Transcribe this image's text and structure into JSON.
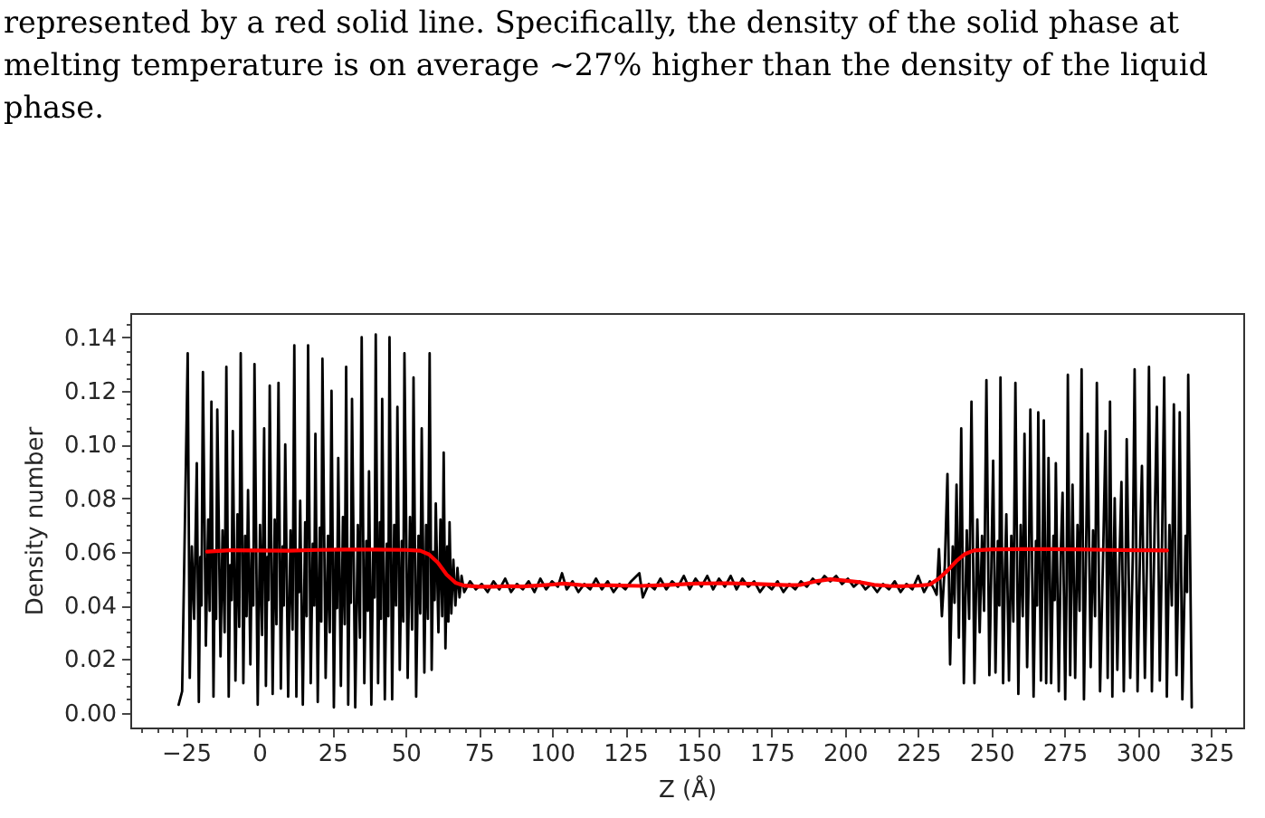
{
  "chart_data": {
    "type": "line",
    "annotations": [
      "represented by a red solid line.  Specifically, the density of the solid phase at\nmelting temperature is on average ∼27% higher than the density of the liquid\nphase."
    ],
    "xlabel": "Z (Å)",
    "ylabel": "Density number",
    "xlim": [
      -44,
      336
    ],
    "ylim": [
      -0.0055,
      0.149
    ],
    "xticks": [
      {
        "value": -40,
        "label": null
      },
      {
        "value": -35,
        "label": null
      },
      {
        "value": -30,
        "label": null
      },
      {
        "value": -25,
        "label": "−25"
      },
      {
        "value": -20,
        "label": null
      },
      {
        "value": -15,
        "label": null
      },
      {
        "value": -10,
        "label": null
      },
      {
        "value": -5,
        "label": null
      },
      0,
      {
        "value": 5,
        "label": null
      },
      {
        "value": 10,
        "label": null
      },
      {
        "value": 15,
        "label": null
      },
      {
        "value": 20,
        "label": null
      },
      25,
      {
        "value": 30,
        "label": null
      },
      {
        "value": 35,
        "label": null
      },
      {
        "value": 40,
        "label": null
      },
      {
        "value": 45,
        "label": null
      },
      50,
      {
        "value": 55,
        "label": null
      },
      {
        "value": 60,
        "label": null
      },
      {
        "value": 65,
        "label": null
      },
      {
        "value": 70,
        "label": null
      },
      75,
      {
        "value": 80,
        "label": null
      },
      {
        "value": 85,
        "label": null
      },
      {
        "value": 90,
        "label": null
      },
      {
        "value": 95,
        "label": null
      },
      100,
      {
        "value": 105,
        "label": null
      },
      {
        "value": 110,
        "label": null
      },
      {
        "value": 115,
        "label": null
      },
      {
        "value": 120,
        "label": null
      },
      125,
      {
        "value": 130,
        "label": null
      },
      {
        "value": 135,
        "label": null
      },
      {
        "value": 140,
        "label": null
      },
      {
        "value": 145,
        "label": null
      },
      150,
      {
        "value": 155,
        "label": null
      },
      {
        "value": 160,
        "label": null
      },
      {
        "value": 165,
        "label": null
      },
      {
        "value": 170,
        "label": null
      },
      175,
      {
        "value": 180,
        "label": null
      },
      {
        "value": 185,
        "label": null
      },
      {
        "value": 190,
        "label": null
      },
      {
        "value": 195,
        "label": null
      },
      200,
      {
        "value": 205,
        "label": null
      },
      {
        "value": 210,
        "label": null
      },
      {
        "value": 215,
        "label": null
      },
      {
        "value": 220,
        "label": null
      },
      225,
      {
        "value": 230,
        "label": null
      },
      {
        "value": 235,
        "label": null
      },
      {
        "value": 240,
        "label": null
      },
      {
        "value": 245,
        "label": null
      },
      250,
      {
        "value": 255,
        "label": null
      },
      {
        "value": 260,
        "label": null
      },
      {
        "value": 265,
        "label": null
      },
      {
        "value": 270,
        "label": null
      },
      275,
      {
        "value": 280,
        "label": null
      },
      {
        "value": 285,
        "label": null
      },
      {
        "value": 290,
        "label": null
      },
      {
        "value": 295,
        "label": null
      },
      300,
      {
        "value": 305,
        "label": null
      },
      {
        "value": 310,
        "label": null
      },
      {
        "value": 315,
        "label": null
      },
      {
        "value": 320,
        "label": null
      },
      325,
      {
        "value": 330,
        "label": null
      }
    ],
    "yticks": [
      {
        "value": 0,
        "label": "0.00"
      },
      {
        "value": 0.005,
        "label": null
      },
      {
        "value": 0.01,
        "label": null
      },
      {
        "value": 0.015,
        "label": null
      },
      0.02,
      {
        "value": 0.025,
        "label": null
      },
      {
        "value": 0.03,
        "label": null
      },
      {
        "value": 0.035,
        "label": null
      },
      0.04,
      {
        "value": 0.045,
        "label": null
      },
      {
        "value": 0.05,
        "label": null
      },
      {
        "value": 0.055,
        "label": null
      },
      0.06,
      {
        "value": 0.065,
        "label": null
      },
      {
        "value": 0.07,
        "label": null
      },
      {
        "value": 0.075,
        "label": null
      },
      0.08,
      {
        "value": 0.085,
        "label": null
      },
      {
        "value": 0.09,
        "label": null
      },
      {
        "value": 0.095,
        "label": null
      },
      {
        "value": 0.1,
        "label": "0.10"
      },
      {
        "value": 0.105,
        "label": null
      },
      {
        "value": 0.11,
        "label": null
      },
      {
        "value": 0.115,
        "label": null
      },
      0.12,
      {
        "value": 0.125,
        "label": null
      },
      {
        "value": 0.13,
        "label": null
      },
      {
        "value": 0.135,
        "label": null
      },
      0.14,
      {
        "value": 0.145,
        "label": null
      }
    ],
    "series": [
      {
        "color": "#000000",
        "x": [
          -27.5,
          -26.3,
          -24.4,
          -23.7,
          -23.0,
          -22.2,
          -21.3,
          -20.6,
          -20.1,
          -19.7,
          -19.2,
          -18.2,
          -17.4,
          -16.9,
          -16.3,
          -15.6,
          -15.1,
          -14.7,
          -14.3,
          -13.2,
          -12.5,
          -11.8,
          -11.2,
          -10.4,
          -9.9,
          -9.4,
          -9.0,
          -8.1,
          -7.4,
          -6.8,
          -6.3,
          -5.4,
          -4.8,
          -4.3,
          -3.8,
          -3.0,
          -2.5,
          -2.0,
          -1.6,
          -0.5,
          0.3,
          1.0,
          1.7,
          2.3,
          2.8,
          3.2,
          3.6,
          4.6,
          5.3,
          5.9,
          6.6,
          7.4,
          8.0,
          8.4,
          8.9,
          9.9,
          10.7,
          11.4,
          12.0,
          12.7,
          13.2,
          13.6,
          14.0,
          14.9,
          15.7,
          16.2,
          16.7,
          17.6,
          18.3,
          18.8,
          19.2,
          20.0,
          20.7,
          21.2,
          21.6,
          22.7,
          23.5,
          24.1,
          24.7,
          25.5,
          26.1,
          26.6,
          27.0,
          27.9,
          28.6,
          29.2,
          29.7,
          30.4,
          30.9,
          31.3,
          31.7,
          32.8,
          33.7,
          34.4,
          35.0,
          35.9,
          36.6,
          37.1,
          37.5,
          38.3,
          38.9,
          39.4,
          39.8,
          40.6,
          41.2,
          41.6,
          42.0,
          42.9,
          43.6,
          44.1,
          44.5,
          45.4,
          46.1,
          46.7,
          47.2,
          48.0,
          48.7,
          49.2,
          49.6,
          50.7,
          51.5,
          52.2,
          52.7,
          53.6,
          54.4,
          55.0,
          55.5,
          56.4,
          57.0,
          57.6,
          58.2,
          58.9,
          59.4,
          59.9,
          60.3,
          61.2,
          61.9,
          62.5,
          63.0,
          63.6,
          64.2,
          64.6,
          65.0,
          65.6,
          66.3,
          67.0,
          67.7,
          68.4,
          69.1,
          70,
          72,
          74,
          76,
          78,
          80,
          82,
          84,
          86,
          88,
          90,
          92,
          94,
          96,
          98,
          100,
          102,
          103.4,
          105,
          107,
          109,
          111,
          113,
          115,
          117,
          119,
          121,
          123,
          125,
          127,
          129.8,
          131,
          133,
          135,
          137,
          139,
          141,
          143,
          145,
          147,
          149,
          151,
          153,
          155,
          157,
          159,
          161,
          163,
          165,
          167,
          169,
          171,
          173,
          175,
          177,
          179,
          181,
          183,
          185,
          187,
          189,
          191,
          193,
          195,
          197,
          199,
          201,
          203,
          205,
          207,
          209,
          211,
          213,
          215,
          217,
          219,
          221,
          223,
          225,
          227,
          229,
          230.5,
          231.3,
          232.1,
          233.1,
          234.1,
          235.0,
          235.9,
          236.8,
          237.4,
          238.1,
          238.9,
          239.7,
          240.6,
          241.6,
          242.4,
          243.2,
          244.2,
          245.2,
          246.0,
          246.8,
          247.5,
          248.3,
          249.3,
          250.0,
          250.6,
          251.4,
          252.2,
          252.7,
          253.1,
          254.0,
          254.6,
          255.1,
          256.0,
          256.8,
          257.5,
          258.2,
          259.2,
          260.0,
          260.7,
          261.3,
          262.2,
          262.8,
          263.3,
          264.4,
          265.2,
          265.6,
          266.0,
          266.9,
          267.4,
          267.9,
          268.7,
          269.1,
          269.5,
          270.4,
          271.2,
          271.6,
          272.0,
          273.0,
          273.7,
          274.3,
          275.2,
          275.7,
          276.1,
          276.9,
          277.3,
          277.7,
          278.6,
          279.4,
          280.1,
          280.8,
          281.6,
          282.3,
          282.9,
          283.9,
          284.7,
          285.4,
          286.0,
          287.1,
          288.2,
          289.0,
          289.7,
          290.1,
          290.5,
          291.3,
          291.7,
          292.1,
          293.0,
          293.8,
          294.4,
          295.2,
          295.8,
          296.2,
          297.4,
          298.3,
          298.9,
          299.9,
          300.8,
          301.4,
          302.4,
          303.2,
          303.8,
          304.8,
          305.7,
          306.5,
          307.5,
          308.3,
          309.0,
          309.9,
          310.8,
          311.6,
          312.3,
          313.2,
          313.8,
          314.3,
          315.2,
          316.3,
          316.8,
          317.2,
          318.4
        ],
        "values": [
          0.003,
          0.008,
          0.134,
          0.013,
          0.062,
          0.035,
          0.093,
          0.004,
          0.058,
          0.04,
          0.127,
          0.025,
          0.072,
          0.038,
          0.116,
          0.006,
          0.06,
          0.035,
          0.113,
          0.021,
          0.068,
          0.03,
          0.129,
          0.006,
          0.055,
          0.042,
          0.105,
          0.012,
          0.074,
          0.032,
          0.134,
          0.011,
          0.066,
          0.036,
          0.083,
          0.018,
          0.06,
          0.04,
          0.13,
          0.003,
          0.07,
          0.029,
          0.106,
          0.01,
          0.058,
          0.042,
          0.122,
          0.007,
          0.072,
          0.033,
          0.123,
          0.009,
          0.062,
          0.04,
          0.1,
          0.006,
          0.068,
          0.031,
          0.137,
          0.006,
          0.06,
          0.045,
          0.079,
          0.003,
          0.071,
          0.036,
          0.137,
          0.011,
          0.063,
          0.04,
          0.104,
          0.004,
          0.069,
          0.034,
          0.132,
          0.013,
          0.066,
          0.03,
          0.12,
          0.002,
          0.061,
          0.039,
          0.095,
          0.01,
          0.073,
          0.033,
          0.129,
          0.003,
          0.06,
          0.041,
          0.117,
          0.002,
          0.07,
          0.028,
          0.14,
          0.011,
          0.064,
          0.038,
          0.09,
          0.003,
          0.06,
          0.043,
          0.141,
          0.011,
          0.071,
          0.035,
          0.117,
          0.005,
          0.063,
          0.036,
          0.14,
          0.005,
          0.07,
          0.04,
          0.114,
          0.016,
          0.064,
          0.034,
          0.134,
          0.013,
          0.073,
          0.031,
          0.125,
          0.006,
          0.066,
          0.037,
          0.106,
          0.015,
          0.07,
          0.035,
          0.134,
          0.016,
          0.06,
          0.042,
          0.078,
          0.03,
          0.072,
          0.036,
          0.097,
          0.024,
          0.062,
          0.034,
          0.071,
          0.037,
          0.057,
          0.04,
          0.054,
          0.043,
          0.051,
          0.045,
          0.049,
          0.046,
          0.048,
          0.045,
          0.049,
          0.046,
          0.05,
          0.045,
          0.048,
          0.046,
          0.049,
          0.045,
          0.05,
          0.046,
          0.049,
          0.047,
          0.052,
          0.046,
          0.049,
          0.045,
          0.048,
          0.046,
          0.05,
          0.046,
          0.049,
          0.045,
          0.048,
          0.046,
          0.049,
          0.052,
          0.043,
          0.048,
          0.046,
          0.05,
          0.046,
          0.049,
          0.047,
          0.051,
          0.046,
          0.05,
          0.047,
          0.051,
          0.046,
          0.05,
          0.047,
          0.051,
          0.046,
          0.05,
          0.047,
          0.049,
          0.045,
          0.048,
          0.046,
          0.049,
          0.045,
          0.048,
          0.046,
          0.049,
          0.047,
          0.05,
          0.048,
          0.051,
          0.049,
          0.051,
          0.048,
          0.05,
          0.047,
          0.049,
          0.046,
          0.048,
          0.045,
          0.048,
          0.046,
          0.049,
          0.045,
          0.048,
          0.046,
          0.051,
          0.045,
          0.049,
          0.046,
          0.044,
          0.061,
          0.036,
          0.055,
          0.089,
          0.018,
          0.062,
          0.041,
          0.085,
          0.028,
          0.106,
          0.011,
          0.068,
          0.035,
          0.116,
          0.011,
          0.072,
          0.03,
          0.066,
          0.038,
          0.124,
          0.014,
          0.055,
          0.094,
          0.015,
          0.064,
          0.04,
          0.125,
          0.011,
          0.052,
          0.074,
          0.012,
          0.066,
          0.034,
          0.123,
          0.007,
          0.07,
          0.036,
          0.104,
          0.017,
          0.055,
          0.113,
          0.006,
          0.064,
          0.04,
          0.112,
          0.012,
          0.05,
          0.109,
          0.011,
          0.048,
          0.095,
          0.011,
          0.066,
          0.042,
          0.093,
          0.008,
          0.06,
          0.082,
          0.005,
          0.05,
          0.126,
          0.014,
          0.05,
          0.085,
          0.013,
          0.07,
          0.038,
          0.128,
          0.005,
          0.06,
          0.104,
          0.017,
          0.068,
          0.036,
          0.123,
          0.008,
          0.062,
          0.105,
          0.013,
          0.052,
          0.116,
          0.006,
          0.05,
          0.08,
          0.016,
          0.06,
          0.086,
          0.008,
          0.052,
          0.102,
          0.013,
          0.06,
          0.128,
          0.008,
          0.064,
          0.092,
          0.013,
          0.062,
          0.129,
          0.008,
          0.068,
          0.114,
          0.012,
          0.066,
          0.125,
          0.006,
          0.07,
          0.04,
          0.115,
          0.014,
          0.05,
          0.112,
          0.005,
          0.066,
          0.045,
          0.126,
          0.002
        ]
      },
      {
        "color": "#ff0000",
        "x": [
          -17.8,
          -10,
          0,
          10,
          20,
          30,
          40,
          50,
          55,
          58,
          61,
          64,
          67,
          70,
          75,
          80,
          85,
          90,
          95,
          100,
          104,
          110,
          120,
          130,
          140,
          150,
          160,
          170,
          180,
          185,
          190,
          195,
          200,
          205,
          210,
          215,
          220,
          225,
          229,
          232,
          235,
          238,
          241,
          244,
          250,
          260,
          270,
          280,
          290,
          300,
          310
        ],
        "values": [
          0.0601,
          0.0606,
          0.0605,
          0.0604,
          0.0607,
          0.0608,
          0.0608,
          0.0607,
          0.0604,
          0.059,
          0.056,
          0.0515,
          0.0485,
          0.0474,
          0.047,
          0.047,
          0.0472,
          0.0471,
          0.0474,
          0.0478,
          0.0482,
          0.0476,
          0.0475,
          0.0473,
          0.0477,
          0.0482,
          0.0483,
          0.048,
          0.0476,
          0.0477,
          0.049,
          0.0498,
          0.0493,
          0.0487,
          0.0477,
          0.0473,
          0.0472,
          0.0474,
          0.0478,
          0.05,
          0.053,
          0.0565,
          0.0592,
          0.0605,
          0.0609,
          0.061,
          0.061,
          0.0609,
          0.0607,
          0.0606,
          0.0605
        ]
      }
    ]
  }
}
